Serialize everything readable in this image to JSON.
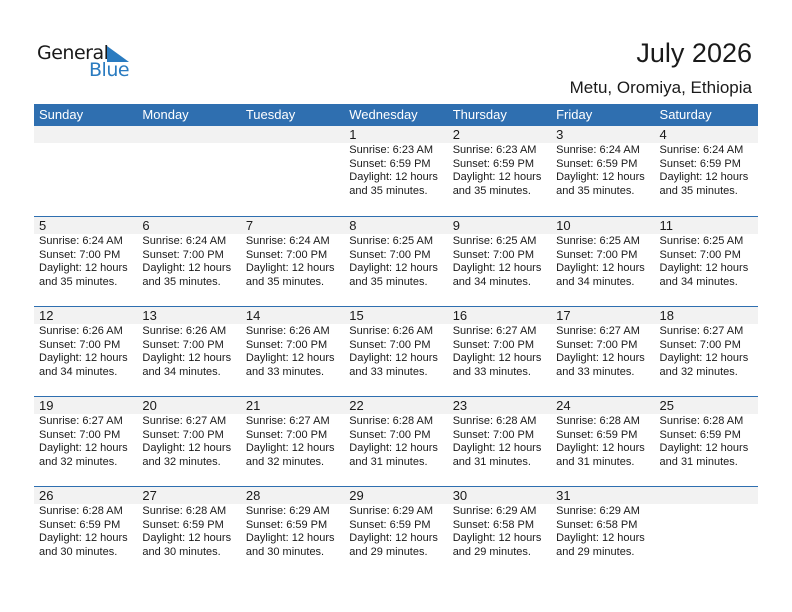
{
  "logo": {
    "general": "General",
    "blue": "Blue"
  },
  "header": {
    "title": "July 2026",
    "location": "Metu, Oromiya, Ethiopia"
  },
  "colors": {
    "accent": "#2f6fb0",
    "date_bar": "#f2f2f2"
  },
  "weekdays": [
    "Sunday",
    "Monday",
    "Tuesday",
    "Wednesday",
    "Thursday",
    "Friday",
    "Saturday"
  ],
  "weeks": [
    [
      null,
      null,
      null,
      {
        "day": "1",
        "sunrise": "Sunrise: 6:23 AM",
        "sunset": "Sunset: 6:59 PM",
        "daylight": "Daylight: 12 hours",
        "minutes": "and 35 minutes."
      },
      {
        "day": "2",
        "sunrise": "Sunrise: 6:23 AM",
        "sunset": "Sunset: 6:59 PM",
        "daylight": "Daylight: 12 hours",
        "minutes": "and 35 minutes."
      },
      {
        "day": "3",
        "sunrise": "Sunrise: 6:24 AM",
        "sunset": "Sunset: 6:59 PM",
        "daylight": "Daylight: 12 hours",
        "minutes": "and 35 minutes."
      },
      {
        "day": "4",
        "sunrise": "Sunrise: 6:24 AM",
        "sunset": "Sunset: 6:59 PM",
        "daylight": "Daylight: 12 hours",
        "minutes": "and 35 minutes."
      }
    ],
    [
      {
        "day": "5",
        "sunrise": "Sunrise: 6:24 AM",
        "sunset": "Sunset: 7:00 PM",
        "daylight": "Daylight: 12 hours",
        "minutes": "and 35 minutes."
      },
      {
        "day": "6",
        "sunrise": "Sunrise: 6:24 AM",
        "sunset": "Sunset: 7:00 PM",
        "daylight": "Daylight: 12 hours",
        "minutes": "and 35 minutes."
      },
      {
        "day": "7",
        "sunrise": "Sunrise: 6:24 AM",
        "sunset": "Sunset: 7:00 PM",
        "daylight": "Daylight: 12 hours",
        "minutes": "and 35 minutes."
      },
      {
        "day": "8",
        "sunrise": "Sunrise: 6:25 AM",
        "sunset": "Sunset: 7:00 PM",
        "daylight": "Daylight: 12 hours",
        "minutes": "and 35 minutes."
      },
      {
        "day": "9",
        "sunrise": "Sunrise: 6:25 AM",
        "sunset": "Sunset: 7:00 PM",
        "daylight": "Daylight: 12 hours",
        "minutes": "and 34 minutes."
      },
      {
        "day": "10",
        "sunrise": "Sunrise: 6:25 AM",
        "sunset": "Sunset: 7:00 PM",
        "daylight": "Daylight: 12 hours",
        "minutes": "and 34 minutes."
      },
      {
        "day": "11",
        "sunrise": "Sunrise: 6:25 AM",
        "sunset": "Sunset: 7:00 PM",
        "daylight": "Daylight: 12 hours",
        "minutes": "and 34 minutes."
      }
    ],
    [
      {
        "day": "12",
        "sunrise": "Sunrise: 6:26 AM",
        "sunset": "Sunset: 7:00 PM",
        "daylight": "Daylight: 12 hours",
        "minutes": "and 34 minutes."
      },
      {
        "day": "13",
        "sunrise": "Sunrise: 6:26 AM",
        "sunset": "Sunset: 7:00 PM",
        "daylight": "Daylight: 12 hours",
        "minutes": "and 34 minutes."
      },
      {
        "day": "14",
        "sunrise": "Sunrise: 6:26 AM",
        "sunset": "Sunset: 7:00 PM",
        "daylight": "Daylight: 12 hours",
        "minutes": "and 33 minutes."
      },
      {
        "day": "15",
        "sunrise": "Sunrise: 6:26 AM",
        "sunset": "Sunset: 7:00 PM",
        "daylight": "Daylight: 12 hours",
        "minutes": "and 33 minutes."
      },
      {
        "day": "16",
        "sunrise": "Sunrise: 6:27 AM",
        "sunset": "Sunset: 7:00 PM",
        "daylight": "Daylight: 12 hours",
        "minutes": "and 33 minutes."
      },
      {
        "day": "17",
        "sunrise": "Sunrise: 6:27 AM",
        "sunset": "Sunset: 7:00 PM",
        "daylight": "Daylight: 12 hours",
        "minutes": "and 33 minutes."
      },
      {
        "day": "18",
        "sunrise": "Sunrise: 6:27 AM",
        "sunset": "Sunset: 7:00 PM",
        "daylight": "Daylight: 12 hours",
        "minutes": "and 32 minutes."
      }
    ],
    [
      {
        "day": "19",
        "sunrise": "Sunrise: 6:27 AM",
        "sunset": "Sunset: 7:00 PM",
        "daylight": "Daylight: 12 hours",
        "minutes": "and 32 minutes."
      },
      {
        "day": "20",
        "sunrise": "Sunrise: 6:27 AM",
        "sunset": "Sunset: 7:00 PM",
        "daylight": "Daylight: 12 hours",
        "minutes": "and 32 minutes."
      },
      {
        "day": "21",
        "sunrise": "Sunrise: 6:27 AM",
        "sunset": "Sunset: 7:00 PM",
        "daylight": "Daylight: 12 hours",
        "minutes": "and 32 minutes."
      },
      {
        "day": "22",
        "sunrise": "Sunrise: 6:28 AM",
        "sunset": "Sunset: 7:00 PM",
        "daylight": "Daylight: 12 hours",
        "minutes": "and 31 minutes."
      },
      {
        "day": "23",
        "sunrise": "Sunrise: 6:28 AM",
        "sunset": "Sunset: 7:00 PM",
        "daylight": "Daylight: 12 hours",
        "minutes": "and 31 minutes."
      },
      {
        "day": "24",
        "sunrise": "Sunrise: 6:28 AM",
        "sunset": "Sunset: 6:59 PM",
        "daylight": "Daylight: 12 hours",
        "minutes": "and 31 minutes."
      },
      {
        "day": "25",
        "sunrise": "Sunrise: 6:28 AM",
        "sunset": "Sunset: 6:59 PM",
        "daylight": "Daylight: 12 hours",
        "minutes": "and 31 minutes."
      }
    ],
    [
      {
        "day": "26",
        "sunrise": "Sunrise: 6:28 AM",
        "sunset": "Sunset: 6:59 PM",
        "daylight": "Daylight: 12 hours",
        "minutes": "and 30 minutes."
      },
      {
        "day": "27",
        "sunrise": "Sunrise: 6:28 AM",
        "sunset": "Sunset: 6:59 PM",
        "daylight": "Daylight: 12 hours",
        "minutes": "and 30 minutes."
      },
      {
        "day": "28",
        "sunrise": "Sunrise: 6:29 AM",
        "sunset": "Sunset: 6:59 PM",
        "daylight": "Daylight: 12 hours",
        "minutes": "and 30 minutes."
      },
      {
        "day": "29",
        "sunrise": "Sunrise: 6:29 AM",
        "sunset": "Sunset: 6:59 PM",
        "daylight": "Daylight: 12 hours",
        "minutes": "and 29 minutes."
      },
      {
        "day": "30",
        "sunrise": "Sunrise: 6:29 AM",
        "sunset": "Sunset: 6:58 PM",
        "daylight": "Daylight: 12 hours",
        "minutes": "and 29 minutes."
      },
      {
        "day": "31",
        "sunrise": "Sunrise: 6:29 AM",
        "sunset": "Sunset: 6:58 PM",
        "daylight": "Daylight: 12 hours",
        "minutes": "and 29 minutes."
      },
      null
    ]
  ]
}
